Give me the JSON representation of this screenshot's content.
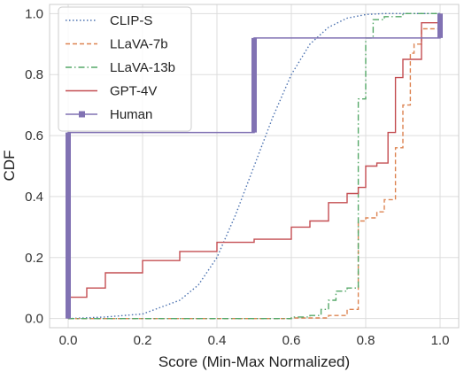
{
  "chart_data": {
    "type": "line",
    "xlabel": "Score (Min-Max Normalized)",
    "ylabel": "CDF",
    "xlim": [
      -0.05,
      1.05
    ],
    "ylim": [
      -0.03,
      1.03
    ],
    "xticks": [
      "0.0",
      "0.2",
      "0.4",
      "0.6",
      "0.8",
      "1.0"
    ],
    "yticks": [
      "0.0",
      "0.2",
      "0.4",
      "0.6",
      "0.8",
      "1.0"
    ],
    "grid": true,
    "legend_position": "top-left",
    "series": [
      {
        "name": "CLIP-S",
        "color": "#4c72b0",
        "style": "dotted",
        "x": [
          0.0,
          0.1,
          0.2,
          0.3,
          0.35,
          0.4,
          0.45,
          0.5,
          0.55,
          0.6,
          0.65,
          0.7,
          0.75,
          0.8,
          0.85,
          0.9,
          1.0
        ],
        "y": [
          0.0,
          0.005,
          0.015,
          0.06,
          0.11,
          0.2,
          0.34,
          0.5,
          0.66,
          0.8,
          0.9,
          0.955,
          0.985,
          0.997,
          1.0,
          1.0,
          1.0
        ]
      },
      {
        "name": "LLaVA-7b",
        "color": "#dd8452",
        "style": "dashed",
        "x": [
          0.0,
          0.6,
          0.7,
          0.75,
          0.78,
          0.8,
          0.83,
          0.85,
          0.88,
          0.9,
          0.92,
          0.93,
          0.95,
          1.0
        ],
        "y": [
          0.0,
          0.002,
          0.01,
          0.03,
          0.32,
          0.33,
          0.35,
          0.39,
          0.56,
          0.7,
          0.87,
          0.9,
          0.95,
          1.0
        ]
      },
      {
        "name": "LLaVA-13b",
        "color": "#55a868",
        "style": "dashdot",
        "x": [
          0.0,
          0.6,
          0.65,
          0.68,
          0.7,
          0.72,
          0.75,
          0.78,
          0.8,
          0.82,
          0.85,
          0.9,
          0.95,
          1.0
        ],
        "y": [
          0.0,
          0.005,
          0.01,
          0.03,
          0.06,
          0.09,
          0.1,
          0.72,
          0.92,
          0.98,
          0.99,
          1.0,
          1.0,
          1.0
        ]
      },
      {
        "name": "GPT-4V",
        "color": "#c44e52",
        "style": "solid",
        "x": [
          0.0,
          0.05,
          0.1,
          0.2,
          0.3,
          0.4,
          0.5,
          0.6,
          0.65,
          0.7,
          0.75,
          0.78,
          0.8,
          0.83,
          0.86,
          0.88,
          0.9,
          0.95,
          1.0
        ],
        "y": [
          0.07,
          0.1,
          0.15,
          0.19,
          0.22,
          0.25,
          0.26,
          0.3,
          0.32,
          0.38,
          0.41,
          0.43,
          0.5,
          0.51,
          0.61,
          0.79,
          0.85,
          0.97,
          0.99
        ]
      },
      {
        "name": "Human",
        "color": "#8172b3",
        "style": "solid-markers",
        "x": [
          0.0,
          0.5,
          1.0
        ],
        "y": [
          0.61,
          0.92,
          1.0
        ]
      }
    ]
  }
}
